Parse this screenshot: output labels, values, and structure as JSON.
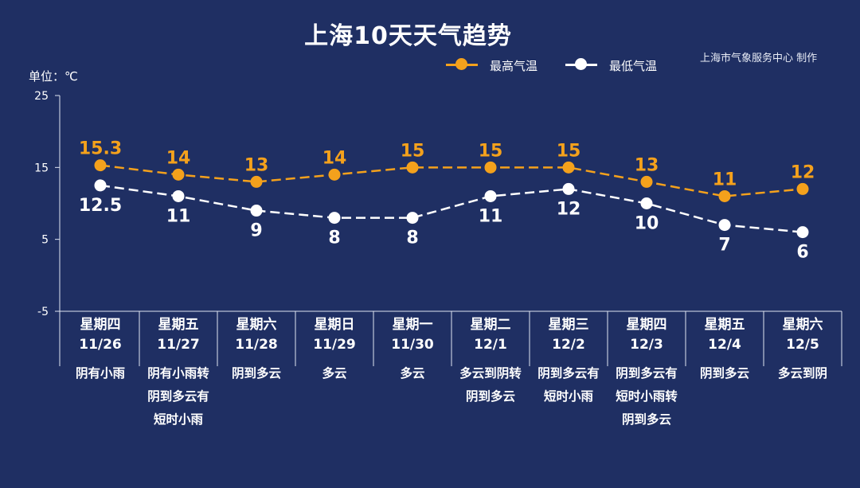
{
  "title": "上海10天天气趋势",
  "credit": "上海市气象服务中心 制作",
  "unit_label": "单位：℃",
  "legend": {
    "high": "最高气温",
    "low": "最低气温"
  },
  "colors": {
    "background": "#1f2f63",
    "high": "#f4a11c",
    "low": "#ffffff"
  },
  "days": [
    {
      "weekday": "星期四",
      "date": "11/26",
      "weather": "阴有小雨"
    },
    {
      "weekday": "星期五",
      "date": "11/27",
      "weather": "阴有小雨转\n阴到多云有\n短时小雨"
    },
    {
      "weekday": "星期六",
      "date": "11/28",
      "weather": "阴到多云"
    },
    {
      "weekday": "星期日",
      "date": "11/29",
      "weather": "多云"
    },
    {
      "weekday": "星期一",
      "date": "11/30",
      "weather": "多云"
    },
    {
      "weekday": "星期二",
      "date": "12/1",
      "weather": "多云到阴转\n阴到多云"
    },
    {
      "weekday": "星期三",
      "date": "12/2",
      "weather": "阴到多云有\n短时小雨"
    },
    {
      "weekday": "星期四",
      "date": "12/3",
      "weather": "阴到多云有\n短时小雨转\n阴到多云"
    },
    {
      "weekday": "星期五",
      "date": "12/4",
      "weather": "阴到多云"
    },
    {
      "weekday": "星期六",
      "date": "12/5",
      "weather": "多云到阴"
    }
  ],
  "chart_data": {
    "type": "line",
    "categories": [
      "11/26",
      "11/27",
      "11/28",
      "11/29",
      "11/30",
      "12/1",
      "12/2",
      "12/3",
      "12/4",
      "12/5"
    ],
    "series": [
      {
        "name": "最高气温",
        "values": [
          15.3,
          14,
          13,
          14,
          15,
          15,
          15,
          13,
          11,
          12
        ]
      },
      {
        "name": "最低气温",
        "values": [
          12.5,
          11,
          9,
          8,
          8,
          11,
          12,
          10,
          7,
          6
        ]
      }
    ],
    "ylabel": "单位：℃",
    "ylim": [
      -5,
      25
    ],
    "yticks": [
      -5,
      5,
      15,
      25
    ],
    "grid": false,
    "legend_position": "top-right",
    "line_style": "dashed"
  }
}
